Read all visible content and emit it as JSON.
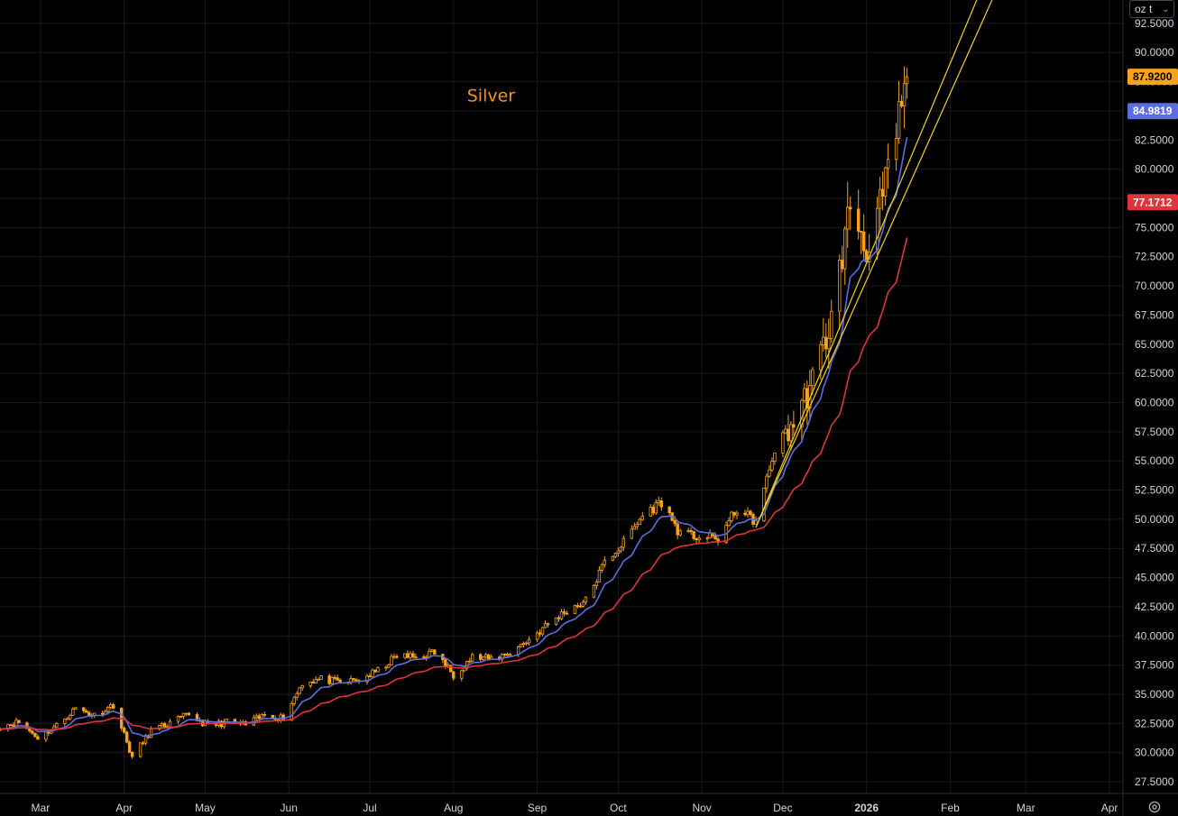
{
  "unit_selector": {
    "label": "oz t",
    "icon": "chevron-down-icon"
  },
  "settings": {
    "icon": "gear-icon"
  },
  "colors": {
    "background": "#000000",
    "grid": "#1a1a1a",
    "candle": "#f7a21b",
    "ma_fast": "#5b6ee1",
    "ma_slow": "#e0343c",
    "trendline": "#f2d21b",
    "annotation": "#f7931a",
    "axis_text": "#d1d4dc"
  },
  "chart_data": {
    "type": "candlestick",
    "title": "",
    "annotations": [
      {
        "text": "Silver",
        "date": "2025-08-06",
        "price": 85.8
      }
    ],
    "ylim": [
      26.5,
      94.5
    ],
    "x_range": [
      "2025-02-14",
      "2026-04-06"
    ],
    "y_ticks": [
      "27.5000",
      "30.0000",
      "32.5000",
      "35.0000",
      "37.5000",
      "40.0000",
      "42.5000",
      "45.0000",
      "47.5000",
      "50.0000",
      "52.5000",
      "55.0000",
      "57.5000",
      "60.0000",
      "62.5000",
      "65.0000",
      "67.5000",
      "70.0000",
      "72.5000",
      "75.0000",
      "77.5000",
      "80.0000",
      "82.5000",
      "85.0000",
      "87.5000",
      "90.0000",
      "92.5000"
    ],
    "x_ticks": [
      {
        "label": "Mar",
        "date": "2025-03-01"
      },
      {
        "label": "Apr",
        "date": "2025-04-01"
      },
      {
        "label": "May",
        "date": "2025-05-01"
      },
      {
        "label": "Jun",
        "date": "2025-06-01"
      },
      {
        "label": "Jul",
        "date": "2025-07-01"
      },
      {
        "label": "Aug",
        "date": "2025-08-01"
      },
      {
        "label": "Sep",
        "date": "2025-09-01"
      },
      {
        "label": "Oct",
        "date": "2025-10-01"
      },
      {
        "label": "Nov",
        "date": "2025-11-01"
      },
      {
        "label": "Dec",
        "date": "2025-12-01"
      },
      {
        "label": "2026",
        "date": "2026-01-01"
      },
      {
        "label": "Feb",
        "date": "2026-02-01"
      },
      {
        "label": "Mar",
        "date": "2026-03-01"
      },
      {
        "label": "Apr",
        "date": "2026-04-01"
      }
    ],
    "price_labels": [
      {
        "value": "87.9200",
        "price": 87.92,
        "color": "#f7a21b",
        "text_color": "#000000"
      },
      {
        "value": "84.9819",
        "price": 84.98,
        "color": "#5b6ee1",
        "text_color": "#ffffff"
      },
      {
        "value": "77.1712",
        "price": 77.17,
        "color": "#e0343c",
        "text_color": "#ffffff"
      }
    ],
    "close_series": [
      [
        "2025-02-14",
        32.3
      ],
      [
        "2025-02-21",
        32.6
      ],
      [
        "2025-02-28",
        31.3
      ],
      [
        "2025-03-07",
        32.3
      ],
      [
        "2025-03-14",
        33.8
      ],
      [
        "2025-03-21",
        33.2
      ],
      [
        "2025-03-28",
        34.1
      ],
      [
        "2025-04-04",
        29.6
      ],
      [
        "2025-04-11",
        31.9
      ],
      [
        "2025-04-18",
        32.5
      ],
      [
        "2025-04-25",
        33.3
      ],
      [
        "2025-05-02",
        32.3
      ],
      [
        "2025-05-09",
        32.6
      ],
      [
        "2025-05-16",
        32.4
      ],
      [
        "2025-05-23",
        33.2
      ],
      [
        "2025-05-30",
        33.0
      ],
      [
        "2025-06-06",
        36.0
      ],
      [
        "2025-06-13",
        36.3
      ],
      [
        "2025-06-20",
        36.0
      ],
      [
        "2025-06-27",
        36.2
      ],
      [
        "2025-07-04",
        37.0
      ],
      [
        "2025-07-11",
        38.3
      ],
      [
        "2025-07-18",
        38.2
      ],
      [
        "2025-07-25",
        38.6
      ],
      [
        "2025-08-01",
        36.7
      ],
      [
        "2025-08-08",
        38.2
      ],
      [
        "2025-08-15",
        38.0
      ],
      [
        "2025-08-22",
        38.6
      ],
      [
        "2025-08-29",
        39.7
      ],
      [
        "2025-09-05",
        41.0
      ],
      [
        "2025-09-12",
        42.2
      ],
      [
        "2025-09-19",
        43.0
      ],
      [
        "2025-09-26",
        46.3
      ],
      [
        "2025-10-03",
        48.0
      ],
      [
        "2025-10-10",
        50.3
      ],
      [
        "2025-10-17",
        51.5
      ],
      [
        "2025-10-24",
        48.7
      ],
      [
        "2025-10-31",
        48.5
      ],
      [
        "2025-11-07",
        48.3
      ],
      [
        "2025-11-14",
        50.9
      ],
      [
        "2025-11-21",
        49.8
      ],
      [
        "2025-11-28",
        56.0
      ],
      [
        "2025-12-05",
        58.3
      ],
      [
        "2025-12-12",
        61.8
      ],
      [
        "2025-12-19",
        67.1
      ],
      [
        "2025-12-26",
        77.0
      ],
      [
        "2026-01-02",
        72.8
      ],
      [
        "2026-01-09",
        79.5
      ],
      [
        "2026-01-16",
        87.92
      ]
    ],
    "series": [
      {
        "name": "",
        "type": "candles",
        "color": "#f7a21b"
      },
      {
        "name": "",
        "type": "moving-average-fast",
        "color": "#5b6ee1",
        "last": 84.9819
      },
      {
        "name": "",
        "type": "moving-average-slow",
        "color": "#e0343c",
        "last": 77.1712
      },
      {
        "name": "",
        "type": "trendline",
        "color": "#f2d21b",
        "points": [
          [
            "2025-11-21",
            49.3
          ],
          [
            "2026-01-02",
            71.0
          ]
        ]
      },
      {
        "name": "",
        "type": "trendline",
        "color": "#f2d21b",
        "points": [
          [
            "2025-11-21",
            49.3
          ],
          [
            "2026-01-02",
            72.5
          ]
        ]
      }
    ]
  }
}
